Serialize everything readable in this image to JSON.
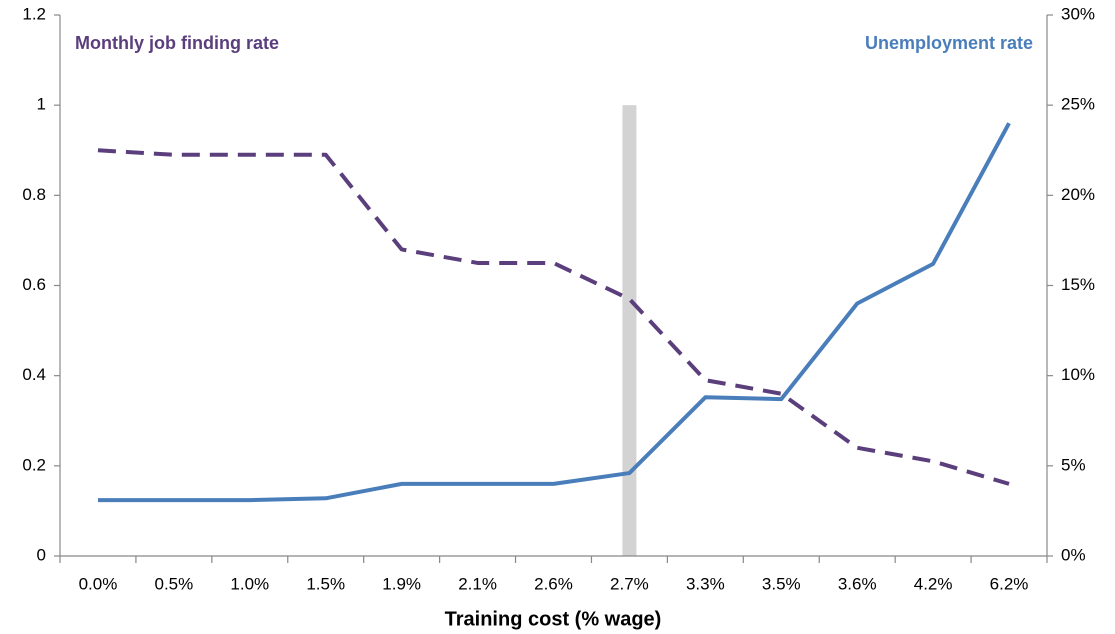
{
  "chart_data": {
    "type": "line",
    "x_label": "Training cost (% wage)",
    "categories": [
      "0.0%",
      "0.5%",
      "1.0%",
      "1.5%",
      "1.9%",
      "2.1%",
      "2.6%",
      "2.7%",
      "3.3%",
      "3.5%",
      "3.6%",
      "4.2%",
      "6.2%"
    ],
    "series": [
      {
        "name": "Monthly job finding rate",
        "color": "#5b3f7c",
        "dashed": true,
        "axis": "y",
        "values": [
          0.9,
          0.89,
          0.89,
          0.89,
          0.68,
          0.65,
          0.65,
          0.57,
          0.39,
          0.36,
          0.24,
          0.21,
          0.16
        ]
      },
      {
        "name": "Unemployment rate",
        "color": "#4a7ebb",
        "dashed": false,
        "axis": "y2",
        "values": [
          3.1,
          3.1,
          3.1,
          3.2,
          4.0,
          4.0,
          4.0,
          4.6,
          8.8,
          8.7,
          14.0,
          16.2,
          24.0
        ]
      }
    ],
    "ylim": [
      0,
      1.2
    ],
    "yticks": [
      0,
      0.2,
      0.4,
      0.6,
      0.8,
      1,
      1.2
    ],
    "y2lim": [
      0,
      30
    ],
    "y2ticks": [
      {
        "value": 0,
        "label": "0%"
      },
      {
        "value": 5,
        "label": "5%"
      },
      {
        "value": 10,
        "label": "10%"
      },
      {
        "value": 15,
        "label": "15%"
      },
      {
        "value": 20,
        "label": "20%"
      },
      {
        "value": 25,
        "label": "25%"
      },
      {
        "value": 30,
        "label": "30%"
      }
    ],
    "vline": {
      "category": "2.7%",
      "top": 1,
      "color": "#d3d3d3"
    }
  }
}
